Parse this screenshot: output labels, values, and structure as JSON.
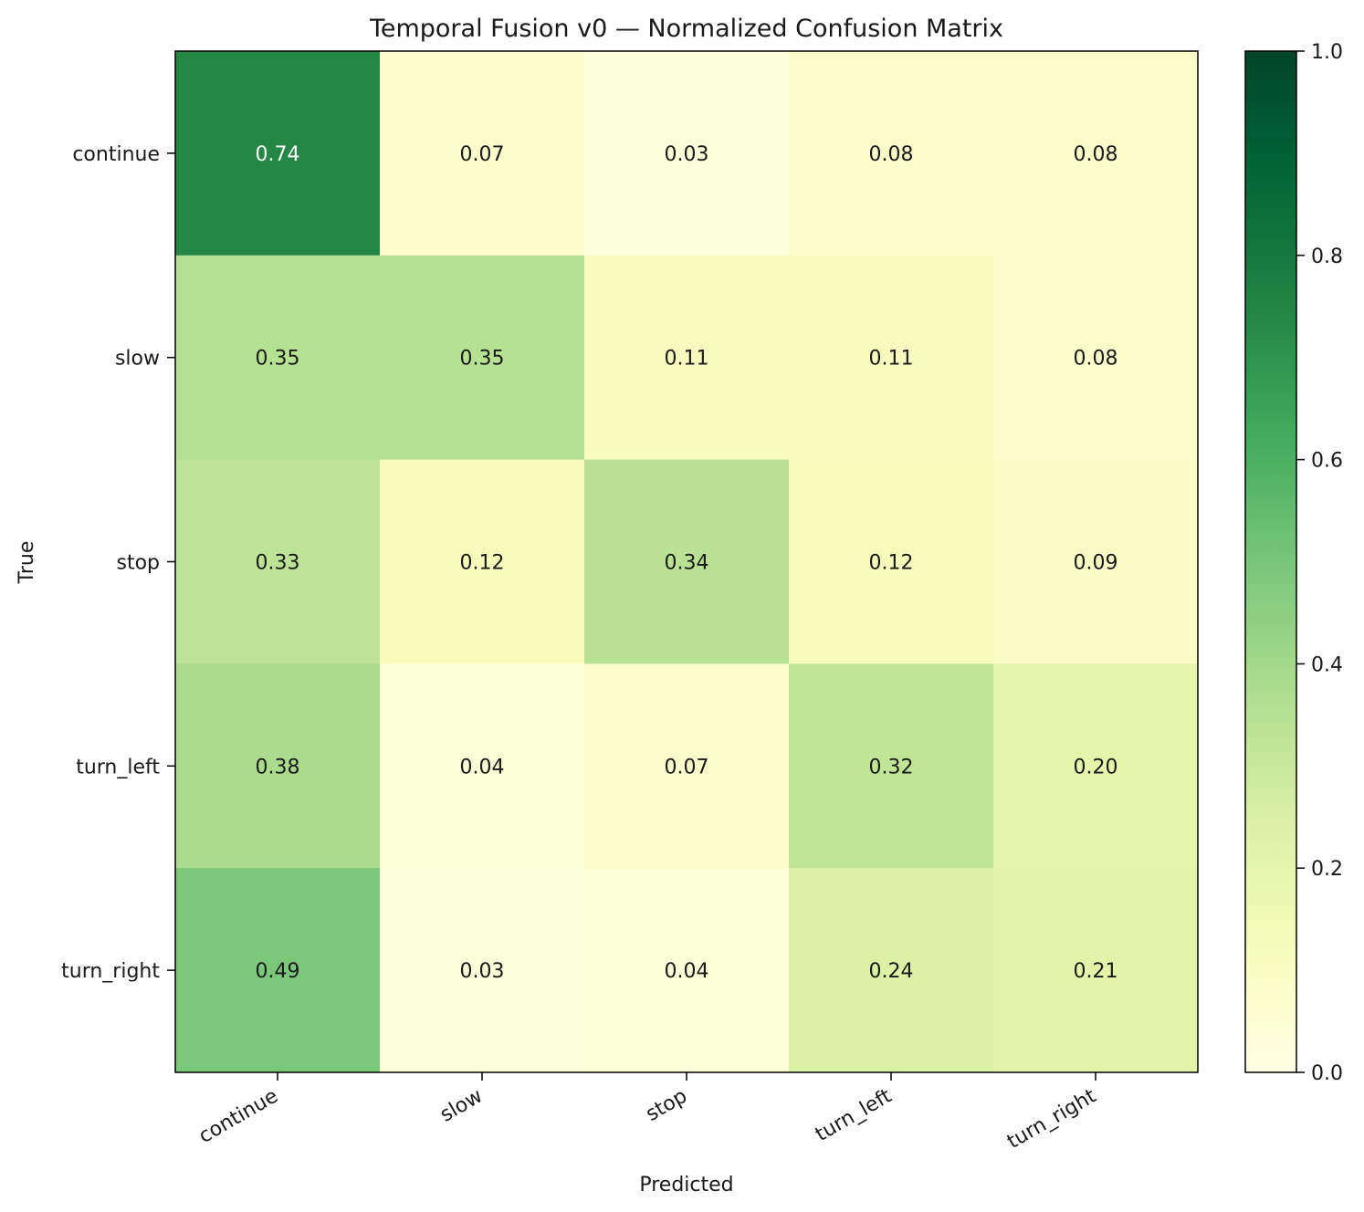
{
  "chart_data": {
    "type": "heatmap",
    "title": "Temporal Fusion v0 — Normalized Confusion Matrix",
    "xlabel": "Predicted",
    "ylabel": "True",
    "x_categories": [
      "continue",
      "slow",
      "stop",
      "turn_left",
      "turn_right"
    ],
    "y_categories": [
      "continue",
      "slow",
      "stop",
      "turn_left",
      "turn_right"
    ],
    "values": [
      [
        0.74,
        0.07,
        0.03,
        0.08,
        0.08
      ],
      [
        0.35,
        0.35,
        0.11,
        0.11,
        0.08
      ],
      [
        0.33,
        0.12,
        0.34,
        0.12,
        0.09
      ],
      [
        0.38,
        0.04,
        0.07,
        0.32,
        0.2
      ],
      [
        0.49,
        0.03,
        0.04,
        0.24,
        0.21
      ]
    ],
    "value_format": "0.00",
    "color_range": [
      0,
      1
    ],
    "colormap": "YlGn",
    "colorbar": {
      "ticks": [
        "0.0",
        "0.2",
        "0.4",
        "0.6",
        "0.8",
        "1.0"
      ],
      "position": "right"
    }
  }
}
